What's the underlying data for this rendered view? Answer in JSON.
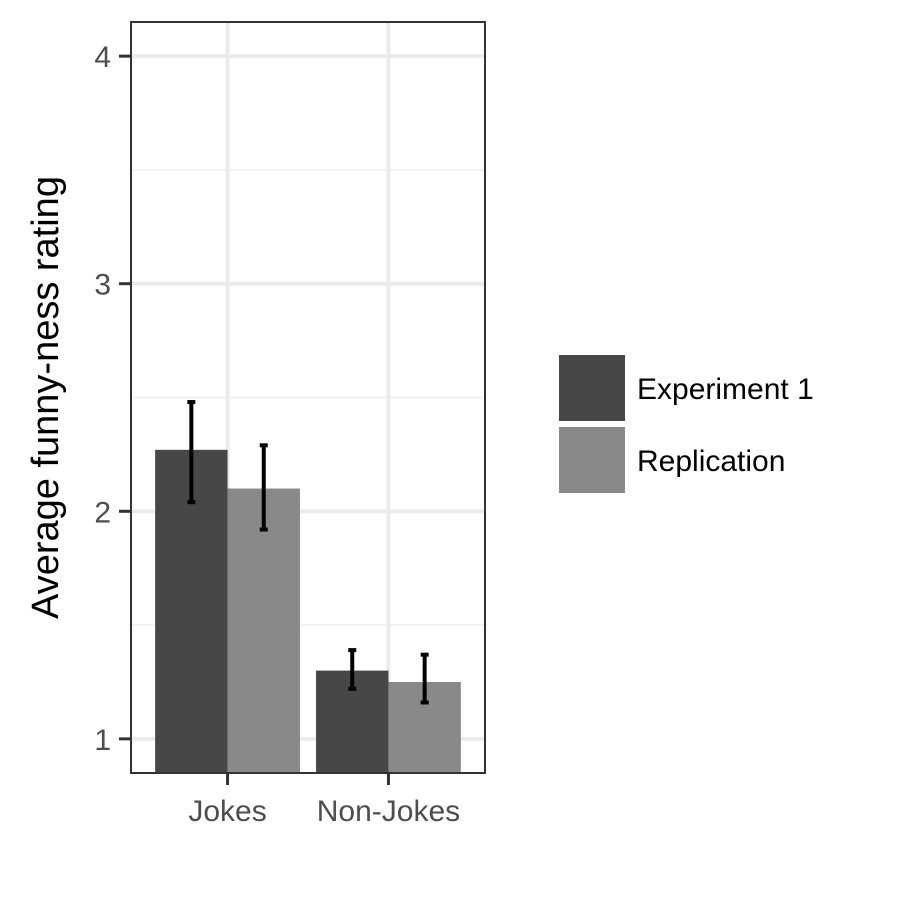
{
  "chart_data": {
    "type": "bar",
    "title": "",
    "xlabel": "",
    "ylabel": "Average funny-ness rating",
    "categories": [
      "Jokes",
      "Non-Jokes"
    ],
    "ylim": [
      0.85,
      4.15
    ],
    "yticks": [
      1,
      2,
      3,
      4
    ],
    "grid": true,
    "legend_position": "right",
    "series": [
      {
        "name": "Experiment 1",
        "color": "#474747",
        "values": [
          2.27,
          1.3
        ],
        "error_low": [
          2.04,
          1.22
        ],
        "error_high": [
          2.48,
          1.39
        ]
      },
      {
        "name": "Replication",
        "color": "#898989",
        "values": [
          2.1,
          1.25
        ],
        "error_low": [
          1.92,
          1.16
        ],
        "error_high": [
          2.29,
          1.37
        ]
      }
    ]
  }
}
